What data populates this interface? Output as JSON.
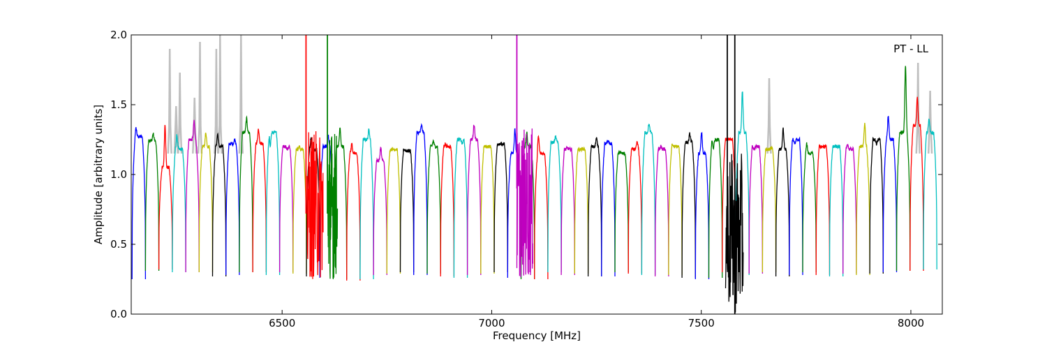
{
  "chart_data": {
    "type": "line",
    "xlabel": "Frequency [MHz]",
    "ylabel": "Amplitude [arbitrary units]",
    "annotation": "PT - LL",
    "xlim": [
      6140,
      8075
    ],
    "ylim": [
      0.0,
      2.0
    ],
    "xticks": [
      6500,
      7000,
      7500,
      8000
    ],
    "yticks": [
      0.0,
      0.5,
      1.0,
      1.5,
      2.0
    ],
    "ytick_labels": [
      "0.0",
      "0.5",
      "1.0",
      "1.5",
      "2.0"
    ],
    "grid": false,
    "legend": "none",
    "channel_width_mhz": 32,
    "channel_start_mhz": 6142,
    "channel_count": 60,
    "color_cycle": [
      "#0000ff",
      "#008000",
      "#ff0000",
      "#00bfbf",
      "#bf00bf",
      "#bfbf00",
      "#000000"
    ],
    "background_trace_color": "#bfbfbf",
    "channel_plateau": [
      1.27,
      1.24,
      1.05,
      1.18,
      1.25,
      1.2,
      1.2,
      1.22,
      1.3,
      1.22,
      1.3,
      1.2,
      1.18,
      1.18,
      1.2,
      1.2,
      1.15,
      1.25,
      1.1,
      1.18,
      1.17,
      1.3,
      1.2,
      1.2,
      1.25,
      1.25,
      1.2,
      1.22,
      1.15,
      1.2,
      1.15,
      1.23,
      1.18,
      1.18,
      1.2,
      1.22,
      1.15,
      1.18,
      1.3,
      1.18,
      1.2,
      1.23,
      1.15,
      1.25,
      1.25,
      1.3,
      1.2,
      1.18,
      1.18,
      1.25,
      1.15,
      1.2,
      1.2,
      1.18,
      1.2,
      1.25,
      1.25,
      1.3,
      1.35,
      1.3
    ],
    "channel_peak": [
      1.33,
      1.29,
      1.36,
      1.28,
      1.38,
      1.3,
      1.29,
      1.25,
      1.4,
      1.32,
      1.21,
      1.18,
      1.2,
      1.26,
      1.28,
      1.33,
      1.22,
      1.32,
      1.19,
      1.18,
      1.18,
      1.35,
      1.24,
      1.22,
      1.22,
      1.36,
      1.2,
      1.21,
      1.32,
      1.3,
      1.27,
      1.27,
      1.19,
      1.18,
      1.26,
      1.24,
      1.16,
      1.23,
      1.36,
      1.2,
      1.21,
      1.29,
      1.3,
      1.19,
      1.25,
      1.6,
      1.18,
      1.19,
      1.33,
      1.22,
      1.22,
      1.2,
      1.2,
      1.22,
      1.37,
      1.22,
      1.42,
      1.79,
      1.56,
      1.4
    ],
    "channel_edge_min": [
      0.25,
      0.31,
      0.32,
      0.3,
      0.3,
      0.3,
      0.27,
      0.28,
      0.3,
      0.3,
      0.28,
      0.3,
      0.29,
      0.27,
      0.26,
      0.25,
      0.24,
      0.25,
      0.28,
      0.29,
      0.3,
      0.28,
      0.29,
      0.27,
      0.26,
      0.28,
      0.29,
      0.3,
      0.26,
      0.25,
      0.25,
      0.3,
      0.28,
      0.29,
      0.27,
      0.27,
      0.3,
      0.29,
      0.28,
      0.27,
      0.28,
      0.26,
      0.25,
      0.26,
      0.3,
      0.28,
      0.29,
      0.3,
      0.27,
      0.28,
      0.3,
      0.28,
      0.27,
      0.29,
      0.28,
      0.29,
      0.3,
      0.31,
      0.31,
      0.32
    ],
    "rfi_background_spikes": [
      {
        "x": 6232,
        "y": 1.9
      },
      {
        "x": 6247,
        "y": 1.49
      },
      {
        "x": 6256,
        "y": 1.73
      },
      {
        "x": 6291,
        "y": 1.55
      },
      {
        "x": 6304,
        "y": 1.95
      },
      {
        "x": 6343,
        "y": 1.9
      },
      {
        "x": 6352,
        "y": 2.0
      },
      {
        "x": 6402,
        "y": 2.0
      },
      {
        "x": 7662,
        "y": 1.69
      },
      {
        "x": 8017,
        "y": 1.8
      },
      {
        "x": 8046,
        "y": 1.6
      }
    ],
    "rfi_lines": [
      {
        "x": 6557,
        "y_min": 0.72,
        "y_max": 2.0,
        "color": "#ff0000"
      },
      {
        "x": 6608,
        "y_min": 0.72,
        "y_max": 2.0,
        "color": "#008000"
      },
      {
        "x": 7060,
        "y_min": 0.9,
        "y_max": 2.0,
        "color": "#bf00bf"
      },
      {
        "x": 7562,
        "y_min": 0.6,
        "y_max": 2.0,
        "color": "#000000"
      },
      {
        "x": 7580,
        "y_min": 0.0,
        "y_max": 2.0,
        "color": "#000000"
      }
    ],
    "noise_regions": [
      {
        "x_from": 6560,
        "x_to": 6598,
        "y_min": 0.24,
        "y_max": 1.32,
        "color": "#ff0000"
      },
      {
        "x_from": 6608,
        "x_to": 6632,
        "y_min": 0.25,
        "y_max": 1.32,
        "color": "#008000"
      },
      {
        "x_from": 7060,
        "x_to": 7098,
        "y_min": 0.25,
        "y_max": 1.33,
        "color": "#bf00bf"
      },
      {
        "x_from": 7558,
        "x_to": 7600,
        "y_min": 0.0,
        "y_max": 1.15,
        "color": "#000000"
      }
    ]
  }
}
